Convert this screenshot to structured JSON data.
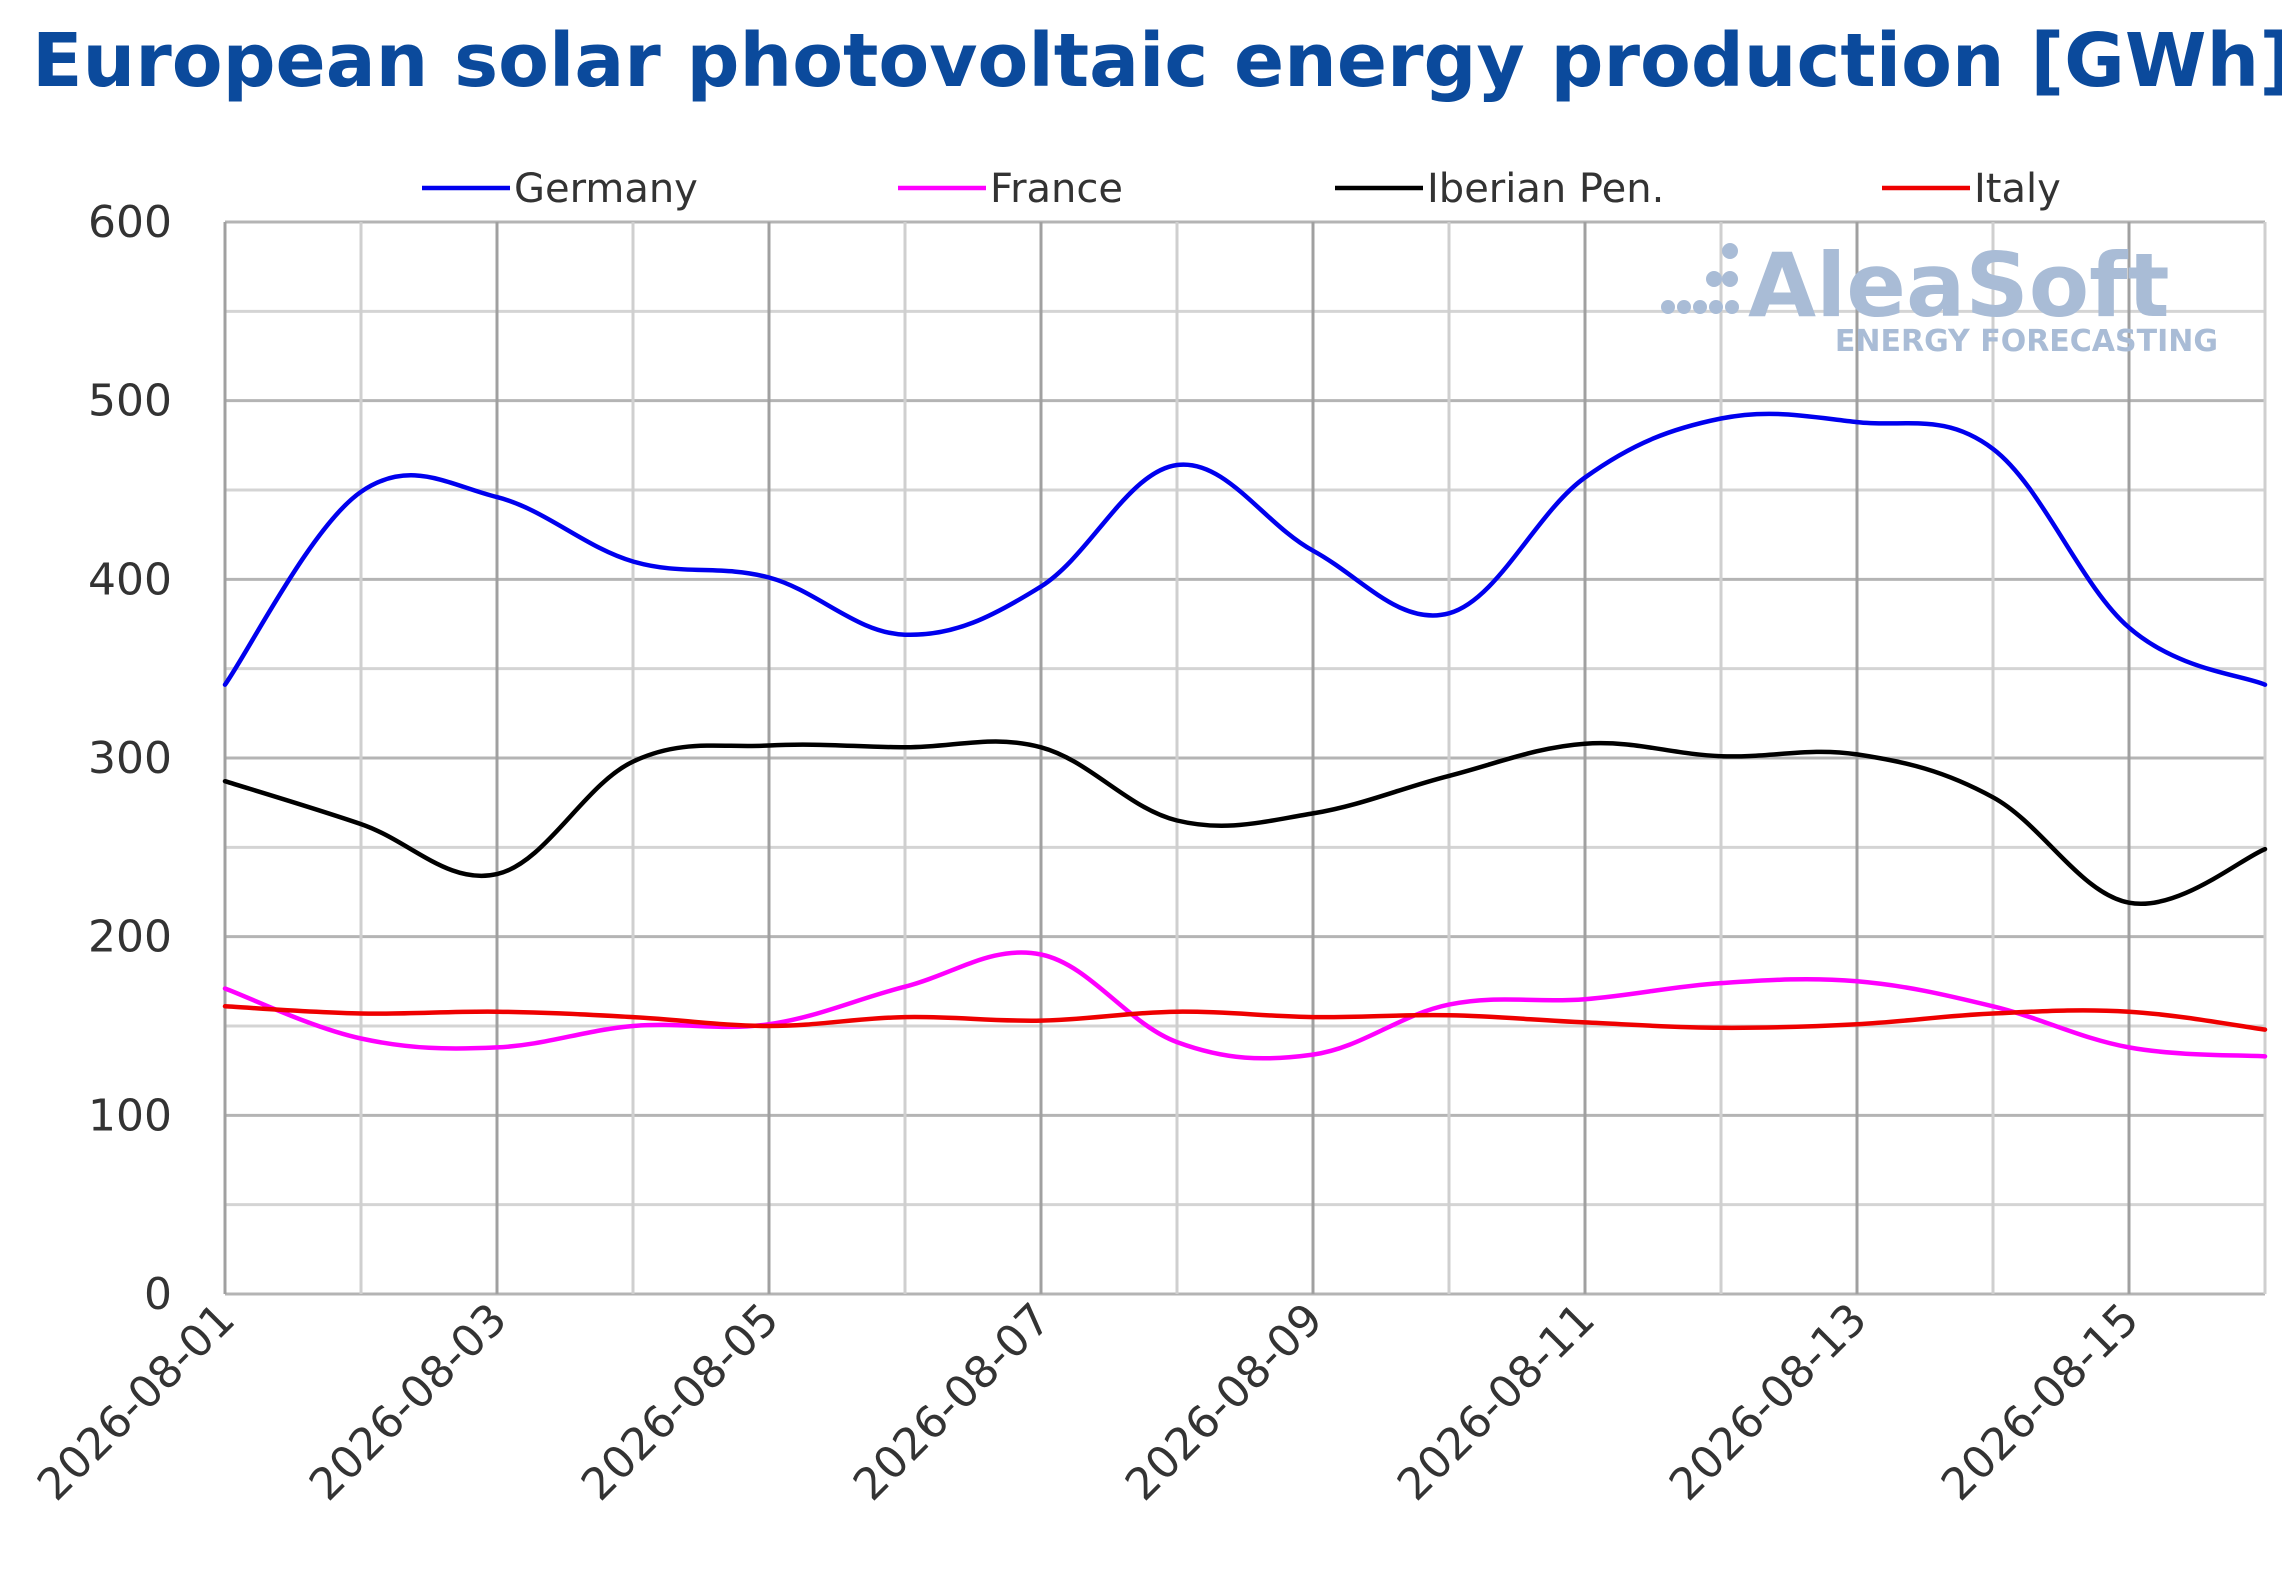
{
  "chart_data": {
    "type": "line",
    "title": "European solar photovoltaic energy production [GWh]",
    "xlabel": "",
    "ylabel": "",
    "x": [
      "2026-08-01",
      "2026-08-02",
      "2026-08-03",
      "2026-08-04",
      "2026-08-05",
      "2026-08-06",
      "2026-08-07",
      "2026-08-08",
      "2026-08-09",
      "2026-08-10",
      "2026-08-11",
      "2026-08-12",
      "2026-08-13",
      "2026-08-14",
      "2026-08-15",
      "2026-08-16"
    ],
    "x_tick_labels": [
      "2026-08-01",
      "2026-08-03",
      "2026-08-05",
      "2026-08-07",
      "2026-08-09",
      "2026-08-11",
      "2026-08-13",
      "2026-08-15"
    ],
    "ylim": [
      0,
      600
    ],
    "y_ticks": [
      "0",
      "100",
      "200",
      "300",
      "400",
      "500",
      "600"
    ],
    "grid": true,
    "legend_position": "top",
    "series": [
      {
        "name": "Germany",
        "color": "#0000ee",
        "values": [
          341,
          449,
          446,
          410,
          401,
          369,
          396,
          464,
          416,
          381,
          457,
          490,
          488,
          473,
          373,
          341
        ]
      },
      {
        "name": "France",
        "color": "#ff00ff",
        "values": [
          171,
          143,
          138,
          150,
          151,
          172,
          190,
          141,
          134,
          162,
          165,
          174,
          175,
          161,
          138,
          133
        ]
      },
      {
        "name": "Iberian Pen.",
        "color": "#000000",
        "values": [
          287,
          263,
          235,
          298,
          307,
          306,
          306,
          265,
          269,
          290,
          308,
          301,
          302,
          278,
          219,
          249
        ]
      },
      {
        "name": "Italy",
        "color": "#ee0000",
        "values": [
          161,
          157,
          158,
          155,
          150,
          155,
          153,
          158,
          155,
          156,
          152,
          149,
          151,
          157,
          158,
          148
        ]
      }
    ]
  },
  "watermark": {
    "brand": "AleaSoft",
    "tagline": "ENERGY FORECASTING",
    "color": "#a9bcd6"
  }
}
